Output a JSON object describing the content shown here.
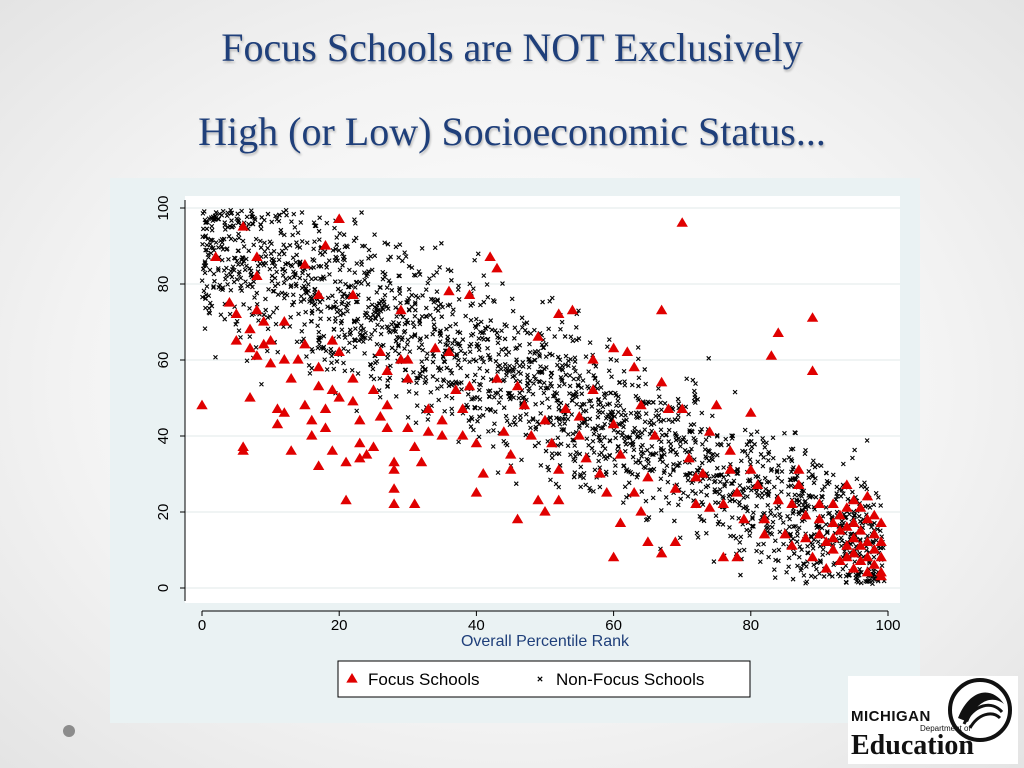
{
  "slide": {
    "title_line_1": "Focus Schools are NOT Exclusively",
    "title_line_2": "High (or Low) Socioeconomic Status..."
  },
  "logo": {
    "state": "MICHIGAN",
    "dept": "Department of",
    "name": "Education"
  },
  "colors": {
    "focus": "#e00000",
    "non_focus": "#000000",
    "title": "#1f3f7a",
    "panel_bg": "#eaf2f3"
  },
  "chart_data": {
    "type": "scatter",
    "xlabel": "Overall Percentile Rank",
    "ylabel": "",
    "xlim": [
      0,
      100
    ],
    "ylim": [
      0,
      100
    ],
    "xticks": [
      0,
      20,
      40,
      60,
      80,
      100
    ],
    "yticks": [
      0,
      20,
      40,
      60,
      80,
      100
    ],
    "grid": "horizontal",
    "legend_position": "bottom",
    "series": [
      {
        "name": "Focus Schools",
        "marker": "triangle",
        "color": "#e00000",
        "points": [
          [
            0,
            48
          ],
          [
            2,
            87
          ],
          [
            4,
            75
          ],
          [
            5,
            72
          ],
          [
            5,
            65
          ],
          [
            6,
            95
          ],
          [
            6,
            37
          ],
          [
            6,
            36
          ],
          [
            7,
            68
          ],
          [
            7,
            63
          ],
          [
            7,
            50
          ],
          [
            8,
            87
          ],
          [
            8,
            82
          ],
          [
            8,
            73
          ],
          [
            8,
            61
          ],
          [
            9,
            70
          ],
          [
            9,
            64
          ],
          [
            10,
            65
          ],
          [
            10,
            59
          ],
          [
            11,
            47
          ],
          [
            11,
            43
          ],
          [
            12,
            70
          ],
          [
            12,
            60
          ],
          [
            12,
            46
          ],
          [
            13,
            55
          ],
          [
            13,
            36
          ],
          [
            14,
            60
          ],
          [
            15,
            85
          ],
          [
            15,
            64
          ],
          [
            15,
            48
          ],
          [
            16,
            44
          ],
          [
            16,
            40
          ],
          [
            17,
            77
          ],
          [
            17,
            58
          ],
          [
            17,
            53
          ],
          [
            17,
            32
          ],
          [
            18,
            90
          ],
          [
            18,
            47
          ],
          [
            18,
            42
          ],
          [
            19,
            65
          ],
          [
            19,
            52
          ],
          [
            19,
            36
          ],
          [
            20,
            97
          ],
          [
            20,
            62
          ],
          [
            20,
            50
          ],
          [
            21,
            33
          ],
          [
            21,
            23
          ],
          [
            22,
            77
          ],
          [
            22,
            55
          ],
          [
            22,
            49
          ],
          [
            23,
            44
          ],
          [
            23,
            38
          ],
          [
            23,
            34
          ],
          [
            24,
            35
          ],
          [
            25,
            37
          ],
          [
            25,
            52
          ],
          [
            26,
            62
          ],
          [
            26,
            45
          ],
          [
            27,
            57
          ],
          [
            27,
            48
          ],
          [
            27,
            42
          ],
          [
            28,
            33
          ],
          [
            28,
            31
          ],
          [
            28,
            26
          ],
          [
            28,
            22
          ],
          [
            29,
            73
          ],
          [
            29,
            60
          ],
          [
            30,
            60
          ],
          [
            30,
            55
          ],
          [
            30,
            42
          ],
          [
            31,
            37
          ],
          [
            31,
            22
          ],
          [
            32,
            33
          ],
          [
            33,
            47
          ],
          [
            33,
            41
          ],
          [
            34,
            63
          ],
          [
            35,
            44
          ],
          [
            35,
            40
          ],
          [
            36,
            78
          ],
          [
            36,
            62
          ],
          [
            37,
            52
          ],
          [
            38,
            47
          ],
          [
            38,
            40
          ],
          [
            39,
            77
          ],
          [
            39,
            53
          ],
          [
            40,
            38
          ],
          [
            40,
            25
          ],
          [
            41,
            30
          ],
          [
            42,
            87
          ],
          [
            43,
            84
          ],
          [
            43,
            55
          ],
          [
            44,
            41
          ],
          [
            45,
            35
          ],
          [
            45,
            31
          ],
          [
            46,
            53
          ],
          [
            46,
            18
          ],
          [
            47,
            48
          ],
          [
            48,
            40
          ],
          [
            49,
            66
          ],
          [
            49,
            23
          ],
          [
            50,
            44
          ],
          [
            50,
            20
          ],
          [
            51,
            38
          ],
          [
            52,
            31
          ],
          [
            52,
            72
          ],
          [
            52,
            23
          ],
          [
            53,
            47
          ],
          [
            54,
            73
          ],
          [
            55,
            45
          ],
          [
            55,
            40
          ],
          [
            56,
            34
          ],
          [
            57,
            60
          ],
          [
            57,
            52
          ],
          [
            58,
            30
          ],
          [
            59,
            25
          ],
          [
            60,
            63
          ],
          [
            60,
            43
          ],
          [
            60,
            8
          ],
          [
            61,
            35
          ],
          [
            61,
            17
          ],
          [
            62,
            62
          ],
          [
            63,
            58
          ],
          [
            63,
            25
          ],
          [
            64,
            20
          ],
          [
            64,
            48
          ],
          [
            65,
            29
          ],
          [
            65,
            12
          ],
          [
            66,
            40
          ],
          [
            67,
            73
          ],
          [
            67,
            54
          ],
          [
            67,
            9
          ],
          [
            68,
            47
          ],
          [
            69,
            26
          ],
          [
            69,
            12
          ],
          [
            70,
            96
          ],
          [
            70,
            47
          ],
          [
            71,
            34
          ],
          [
            72,
            29
          ],
          [
            72,
            22
          ],
          [
            73,
            30
          ],
          [
            74,
            41
          ],
          [
            74,
            21
          ],
          [
            75,
            48
          ],
          [
            76,
            22
          ],
          [
            76,
            8
          ],
          [
            77,
            36
          ],
          [
            77,
            31
          ],
          [
            78,
            25
          ],
          [
            78,
            8
          ],
          [
            79,
            18
          ],
          [
            80,
            46
          ],
          [
            80,
            31
          ],
          [
            81,
            27
          ],
          [
            82,
            18
          ],
          [
            82,
            14
          ],
          [
            83,
            61
          ],
          [
            84,
            67
          ],
          [
            84,
            23
          ],
          [
            85,
            14
          ],
          [
            86,
            22
          ],
          [
            86,
            11
          ],
          [
            87,
            31
          ],
          [
            87,
            27
          ],
          [
            88,
            19
          ],
          [
            88,
            13
          ],
          [
            89,
            71
          ],
          [
            89,
            57
          ],
          [
            89,
            8
          ],
          [
            90,
            22
          ],
          [
            90,
            18
          ],
          [
            90,
            14
          ],
          [
            91,
            12
          ],
          [
            91,
            5
          ],
          [
            92,
            22
          ],
          [
            92,
            17
          ],
          [
            92,
            13
          ],
          [
            92,
            10
          ],
          [
            93,
            19
          ],
          [
            93,
            15
          ],
          [
            93,
            7
          ],
          [
            94,
            27
          ],
          [
            94,
            21
          ],
          [
            94,
            16
          ],
          [
            94,
            11
          ],
          [
            94,
            8
          ],
          [
            95,
            23
          ],
          [
            95,
            17
          ],
          [
            95,
            13
          ],
          [
            95,
            9
          ],
          [
            95,
            5
          ],
          [
            96,
            21
          ],
          [
            96,
            15
          ],
          [
            96,
            11
          ],
          [
            96,
            7
          ],
          [
            97,
            24
          ],
          [
            97,
            18
          ],
          [
            97,
            12
          ],
          [
            97,
            8
          ],
          [
            97,
            4
          ],
          [
            98,
            19
          ],
          [
            98,
            14
          ],
          [
            98,
            10
          ],
          [
            98,
            6
          ],
          [
            99,
            17
          ],
          [
            99,
            12
          ],
          [
            99,
            8
          ],
          [
            99,
            4
          ],
          [
            99,
            3
          ]
        ]
      },
      {
        "name": "Non-Focus Schools",
        "marker": "x",
        "color": "#000000",
        "points": [],
        "note_count": 2300
      }
    ],
    "legend": [
      "Focus Schools",
      "Non-Focus Schools"
    ]
  }
}
